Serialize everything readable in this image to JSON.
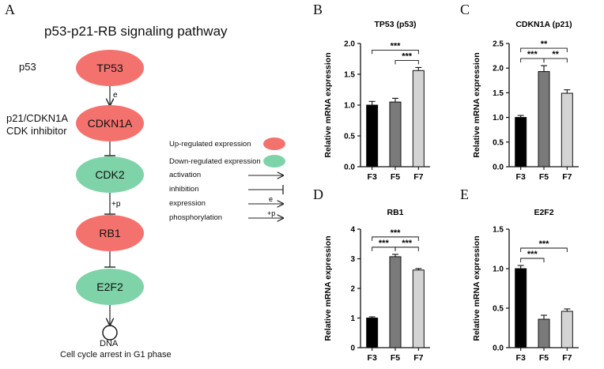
{
  "panel_a": {
    "letter": "A",
    "title": "p53-p21-RB signaling pathway",
    "side_labels": {
      "p53": "p53",
      "p21_line1": "p21/CDKN1A",
      "p21_line2": "CDK inhibitor"
    },
    "nodes": [
      {
        "label": "TP53",
        "color": "#f4726e"
      },
      {
        "label": "CDKN1A",
        "color": "#f4726e"
      },
      {
        "label": "CDK2",
        "color": "#7fd3a8"
      },
      {
        "label": "RB1",
        "color": "#f4726e"
      },
      {
        "label": "E2F2",
        "color": "#7fd3a8"
      }
    ],
    "edge_labels": {
      "expression": "e",
      "phosphorylation": "+p"
    },
    "dna_label": "DNA",
    "caption": "Cell cycle arrest in G1 phase",
    "legend": {
      "up": "Up-regulated expression",
      "down": "Down-regulated expression",
      "activation": "activation",
      "inhibition": "inhibition",
      "expression": "expression",
      "phosphorylation": "phosphorylation",
      "expression_symbol": "e",
      "phosphorylation_symbol": "+p",
      "up_color": "#f4726e",
      "down_color": "#7fd3a8"
    }
  },
  "chart_data": [
    {
      "letter": "B",
      "type": "bar",
      "title": "TP53 (p53)",
      "ylabel": "Relative mRNA expression",
      "categories": [
        "F3",
        "F5",
        "F7"
      ],
      "values": [
        1.0,
        1.05,
        1.56
      ],
      "errors": [
        0.06,
        0.06,
        0.05
      ],
      "colors": [
        "#000000",
        "#7a7a7a",
        "#d4d4d4"
      ],
      "ylim": [
        0,
        2.0
      ],
      "yticks": [
        "0.0",
        "0.5",
        "1.0",
        "1.5",
        "2.0"
      ],
      "significance": [
        {
          "from": 0,
          "to": 2,
          "label": "***"
        },
        {
          "from": 1,
          "to": 2,
          "label": "***"
        }
      ]
    },
    {
      "letter": "C",
      "type": "bar",
      "title": "CDKN1A (p21)",
      "ylabel": "Relative mRNA expression",
      "categories": [
        "F3",
        "F5",
        "F7"
      ],
      "values": [
        1.0,
        1.93,
        1.49
      ],
      "errors": [
        0.04,
        0.12,
        0.07
      ],
      "colors": [
        "#000000",
        "#7a7a7a",
        "#d4d4d4"
      ],
      "ylim": [
        0,
        2.5
      ],
      "yticks": [
        "0.0",
        "0.5",
        "1.0",
        "1.5",
        "2.0",
        "2.5"
      ],
      "significance": [
        {
          "from": 0,
          "to": 2,
          "label": "**"
        },
        {
          "from": 0,
          "to": 1,
          "label": "***"
        },
        {
          "from": 1,
          "to": 2,
          "label": "**"
        }
      ]
    },
    {
      "letter": "D",
      "type": "bar",
      "title": "RB1",
      "ylabel": "Relative mRNA expression",
      "categories": [
        "F3",
        "F5",
        "F7"
      ],
      "values": [
        1.0,
        3.07,
        2.62
      ],
      "errors": [
        0.04,
        0.08,
        0.05
      ],
      "colors": [
        "#000000",
        "#7a7a7a",
        "#d4d4d4"
      ],
      "ylim": [
        0,
        4
      ],
      "yticks": [
        "0",
        "1",
        "2",
        "3",
        "4"
      ],
      "significance": [
        {
          "from": 0,
          "to": 2,
          "label": "***"
        },
        {
          "from": 0,
          "to": 1,
          "label": "***"
        },
        {
          "from": 1,
          "to": 2,
          "label": "***"
        }
      ]
    },
    {
      "letter": "E",
      "type": "bar",
      "title": "E2F2",
      "ylabel": "Relative mRNA expression",
      "categories": [
        "F3",
        "F5",
        "F7"
      ],
      "values": [
        1.0,
        0.36,
        0.46
      ],
      "errors": [
        0.04,
        0.05,
        0.03
      ],
      "colors": [
        "#000000",
        "#7a7a7a",
        "#d4d4d4"
      ],
      "ylim": [
        0,
        1.5
      ],
      "yticks": [
        "0.0",
        "0.5",
        "1.0",
        "1.5"
      ],
      "significance": [
        {
          "from": 0,
          "to": 2,
          "label": "***"
        },
        {
          "from": 0,
          "to": 1,
          "label": "***"
        }
      ]
    }
  ]
}
